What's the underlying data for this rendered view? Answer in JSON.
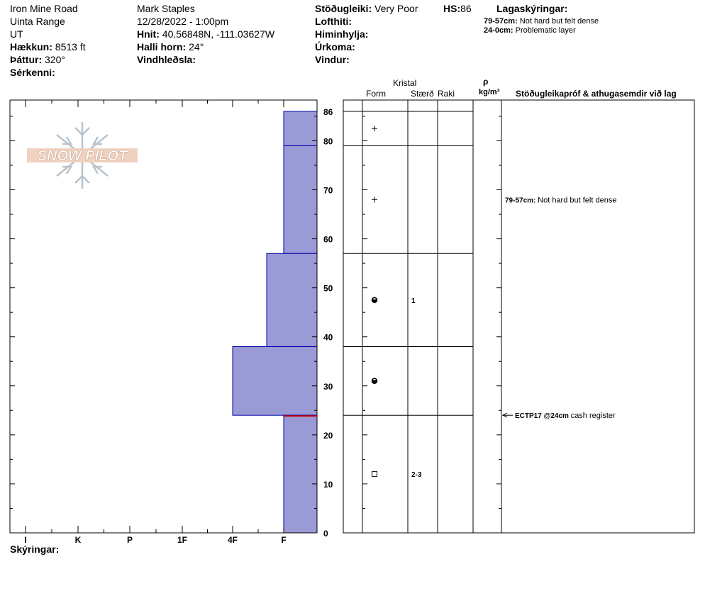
{
  "header": {
    "location": "Iron Mine Road",
    "range": "Uinta Range",
    "state": "UT",
    "elevation_label": "Hækkun:",
    "elevation_value": "8513 ft",
    "aspect_label": "Þáttur:",
    "aspect_value": "320°",
    "features_label": "Sérkenni:",
    "observer": "Mark Staples",
    "datetime": "12/28/2022 - 1:00pm",
    "coords_label": "Hnit:",
    "coords_value": "40.56848N, -111.03627W",
    "slope_label": "Halli horn:",
    "slope_value": "24°",
    "wind_loading_label": "Vindhleðsla:",
    "stability_label": "Stöðugleiki:",
    "stability_value": "Very Poor",
    "hs_label": "HS:",
    "hs_value": "86",
    "air_temp_label": "Lofthiti:",
    "sky_label": "Himinhylja:",
    "precip_label": "Úrkoma:",
    "wind_label": "Vindur:",
    "layer_notes_label": "Lagaskýringar:",
    "layer_notes": [
      {
        "range": "79-57cm:",
        "text": "Not hard but felt dense"
      },
      {
        "range": "24-0cm:",
        "text": "Problematic layer"
      }
    ]
  },
  "logo_text": "SNOW PILOT",
  "hardness_ticks": [
    "I",
    "K",
    "P",
    "1F",
    "4F",
    "F"
  ],
  "depth_ticks": [
    86,
    80,
    70,
    60,
    50,
    40,
    30,
    20,
    10,
    0
  ],
  "legend_label": "Skýringar:",
  "table_headers": {
    "crystal": "Kristal",
    "form": "Form",
    "size": "Stærð",
    "moisture": "Raki",
    "density_symbol": "ρ",
    "density_unit": "kg/m³",
    "comments": "Stöðugleikapróf & athugasemdir við lag"
  },
  "layers": [
    {
      "top": 86,
      "bottom": 79,
      "hardness": "F",
      "form_icon": "plus-icon",
      "size": ""
    },
    {
      "top": 79,
      "bottom": 57,
      "hardness": "F",
      "form_icon": "plus-icon",
      "size": ""
    },
    {
      "top": 57,
      "bottom": 38,
      "hardness": "F+",
      "form_icon": "rounded-grain-icon",
      "size": "1"
    },
    {
      "top": 38,
      "bottom": 24,
      "hardness": "4F",
      "form_icon": "rounded-grain-icon",
      "size": ""
    },
    {
      "top": 24,
      "bottom": 0,
      "hardness": "F",
      "form_icon": "square-icon",
      "size": "2-3"
    }
  ],
  "comments": [
    {
      "range": "79-57cm:",
      "text": "Not hard but felt dense",
      "depth": 68
    }
  ],
  "tests": [
    {
      "label": "ECTP17 @24cm",
      "text": "cash register",
      "depth": 24
    }
  ],
  "colors": {
    "layer_fill": "#9a9ad6",
    "layer_stroke": "#0000aa",
    "test_line": "#cc0000"
  }
}
